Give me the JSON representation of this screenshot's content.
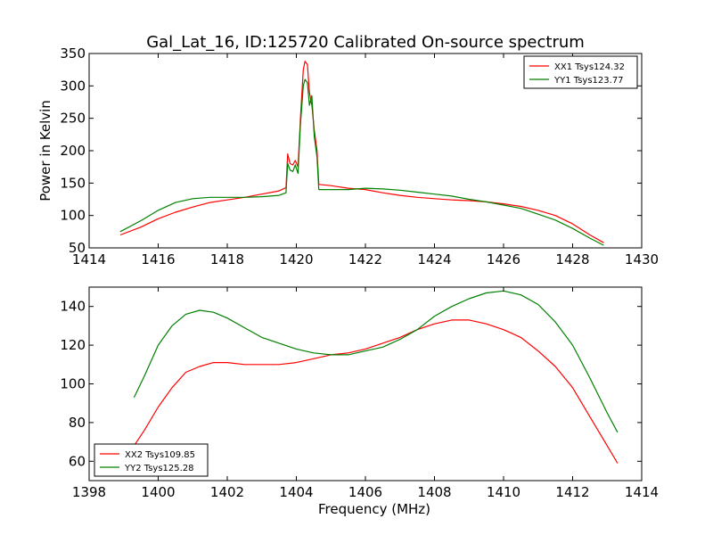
{
  "chart_data": [
    {
      "type": "line",
      "title": "Gal_Lat_16, ID:125720 Calibrated On-source spectrum",
      "xlabel": "",
      "ylabel": "Power in Kelvin",
      "xlim": [
        1414,
        1430
      ],
      "ylim": [
        50,
        350
      ],
      "xticks": [
        "1414",
        "1416",
        "1418",
        "1420",
        "1422",
        "1424",
        "1426",
        "1428",
        "1430"
      ],
      "yticks": [
        "50",
        "100",
        "150",
        "200",
        "250",
        "300",
        "350"
      ],
      "legend_position": "top-right",
      "grid": false,
      "series": [
        {
          "name": "XX1 Tsys124.32",
          "color": "#ff0000",
          "points": [
            [
              1414.9,
              70
            ],
            [
              1415.5,
              82
            ],
            [
              1416,
              95
            ],
            [
              1416.5,
              105
            ],
            [
              1417,
              113
            ],
            [
              1417.5,
              120
            ],
            [
              1418,
              124
            ],
            [
              1418.5,
              128
            ],
            [
              1419,
              133
            ],
            [
              1419.5,
              138
            ],
            [
              1419.7,
              143
            ],
            [
              1419.75,
              195
            ],
            [
              1419.82,
              180
            ],
            [
              1419.9,
              178
            ],
            [
              1419.97,
              185
            ],
            [
              1420.05,
              175
            ],
            [
              1420.12,
              250
            ],
            [
              1420.2,
              325
            ],
            [
              1420.25,
              338
            ],
            [
              1420.32,
              333
            ],
            [
              1420.38,
              290
            ],
            [
              1420.45,
              270
            ],
            [
              1420.52,
              232
            ],
            [
              1420.6,
              200
            ],
            [
              1420.65,
              148
            ],
            [
              1421,
              146
            ],
            [
              1421.5,
              142
            ],
            [
              1422,
              140
            ],
            [
              1422.5,
              135
            ],
            [
              1423,
              131
            ],
            [
              1423.5,
              128
            ],
            [
              1424,
              126
            ],
            [
              1424.5,
              124
            ],
            [
              1425,
              123
            ],
            [
              1425.5,
              121
            ],
            [
              1426,
              118
            ],
            [
              1426.5,
              114
            ],
            [
              1427,
              108
            ],
            [
              1427.5,
              100
            ],
            [
              1428,
              87
            ],
            [
              1428.5,
              70
            ],
            [
              1428.9,
              58
            ]
          ]
        },
        {
          "name": "YY1 Tsys123.77",
          "color": "#008000",
          "points": [
            [
              1414.9,
              75
            ],
            [
              1415.5,
              92
            ],
            [
              1416,
              108
            ],
            [
              1416.5,
              120
            ],
            [
              1417,
              126
            ],
            [
              1417.5,
              128
            ],
            [
              1418,
              128
            ],
            [
              1418.5,
              128
            ],
            [
              1419,
              129
            ],
            [
              1419.5,
              131
            ],
            [
              1419.7,
              135
            ],
            [
              1419.75,
              180
            ],
            [
              1419.82,
              170
            ],
            [
              1419.9,
              168
            ],
            [
              1419.97,
              178
            ],
            [
              1420.05,
              165
            ],
            [
              1420.12,
              240
            ],
            [
              1420.2,
              300
            ],
            [
              1420.25,
              310
            ],
            [
              1420.32,
              305
            ],
            [
              1420.38,
              270
            ],
            [
              1420.45,
              285
            ],
            [
              1420.52,
              222
            ],
            [
              1420.6,
              190
            ],
            [
              1420.65,
              140
            ],
            [
              1421,
              140
            ],
            [
              1421.5,
              140
            ],
            [
              1422,
              142
            ],
            [
              1422.5,
              141
            ],
            [
              1423,
              139
            ],
            [
              1423.5,
              136
            ],
            [
              1424,
              133
            ],
            [
              1424.5,
              130
            ],
            [
              1425,
              125
            ],
            [
              1425.5,
              121
            ],
            [
              1426,
              116
            ],
            [
              1426.5,
              111
            ],
            [
              1427,
              102
            ],
            [
              1427.5,
              93
            ],
            [
              1428,
              80
            ],
            [
              1428.5,
              65
            ],
            [
              1428.9,
              54
            ]
          ]
        }
      ]
    },
    {
      "type": "line",
      "title": "",
      "xlabel": "Frequency (MHz)",
      "ylabel": "",
      "xlim": [
        1398,
        1414
      ],
      "ylim": [
        50,
        150
      ],
      "xticks": [
        "1398",
        "1400",
        "1402",
        "1404",
        "1406",
        "1408",
        "1410",
        "1412",
        "1414"
      ],
      "yticks": [
        "60",
        "80",
        "100",
        "120",
        "140"
      ],
      "legend_position": "bottom-left",
      "grid": false,
      "series": [
        {
          "name": "XX2 Tsys109.85",
          "color": "#ff0000",
          "points": [
            [
              1399.3,
              68
            ],
            [
              1399.6,
              76
            ],
            [
              1400,
              88
            ],
            [
              1400.4,
              98
            ],
            [
              1400.8,
              106
            ],
            [
              1401.2,
              109
            ],
            [
              1401.6,
              111
            ],
            [
              1402,
              111
            ],
            [
              1402.5,
              110
            ],
            [
              1403,
              110
            ],
            [
              1403.5,
              110
            ],
            [
              1404,
              111
            ],
            [
              1404.5,
              113
            ],
            [
              1405,
              115
            ],
            [
              1405.5,
              116
            ],
            [
              1406,
              118
            ],
            [
              1406.5,
              121
            ],
            [
              1407,
              124
            ],
            [
              1407.5,
              128
            ],
            [
              1408,
              131
            ],
            [
              1408.5,
              133
            ],
            [
              1409,
              133
            ],
            [
              1409.5,
              131
            ],
            [
              1410,
              128
            ],
            [
              1410.5,
              124
            ],
            [
              1411,
              117
            ],
            [
              1411.5,
              109
            ],
            [
              1412,
              98
            ],
            [
              1412.5,
              83
            ],
            [
              1413,
              68
            ],
            [
              1413.3,
              59
            ]
          ]
        },
        {
          "name": "YY2 Tsys125.28",
          "color": "#008000",
          "points": [
            [
              1399.3,
              93
            ],
            [
              1399.6,
              104
            ],
            [
              1400,
              120
            ],
            [
              1400.4,
              130
            ],
            [
              1400.8,
              136
            ],
            [
              1401.2,
              138
            ],
            [
              1401.6,
              137
            ],
            [
              1402,
              134
            ],
            [
              1402.5,
              129
            ],
            [
              1403,
              124
            ],
            [
              1403.5,
              121
            ],
            [
              1404,
              118
            ],
            [
              1404.5,
              116
            ],
            [
              1405,
              115
            ],
            [
              1405.5,
              115
            ],
            [
              1406,
              117
            ],
            [
              1406.5,
              119
            ],
            [
              1407,
              123
            ],
            [
              1407.5,
              128
            ],
            [
              1408,
              135
            ],
            [
              1408.5,
              140
            ],
            [
              1409,
              144
            ],
            [
              1409.5,
              147
            ],
            [
              1410,
              148
            ],
            [
              1410.5,
              146
            ],
            [
              1411,
              141
            ],
            [
              1411.5,
              132
            ],
            [
              1412,
              120
            ],
            [
              1412.5,
              103
            ],
            [
              1413,
              85
            ],
            [
              1413.3,
              75
            ]
          ]
        }
      ]
    }
  ]
}
